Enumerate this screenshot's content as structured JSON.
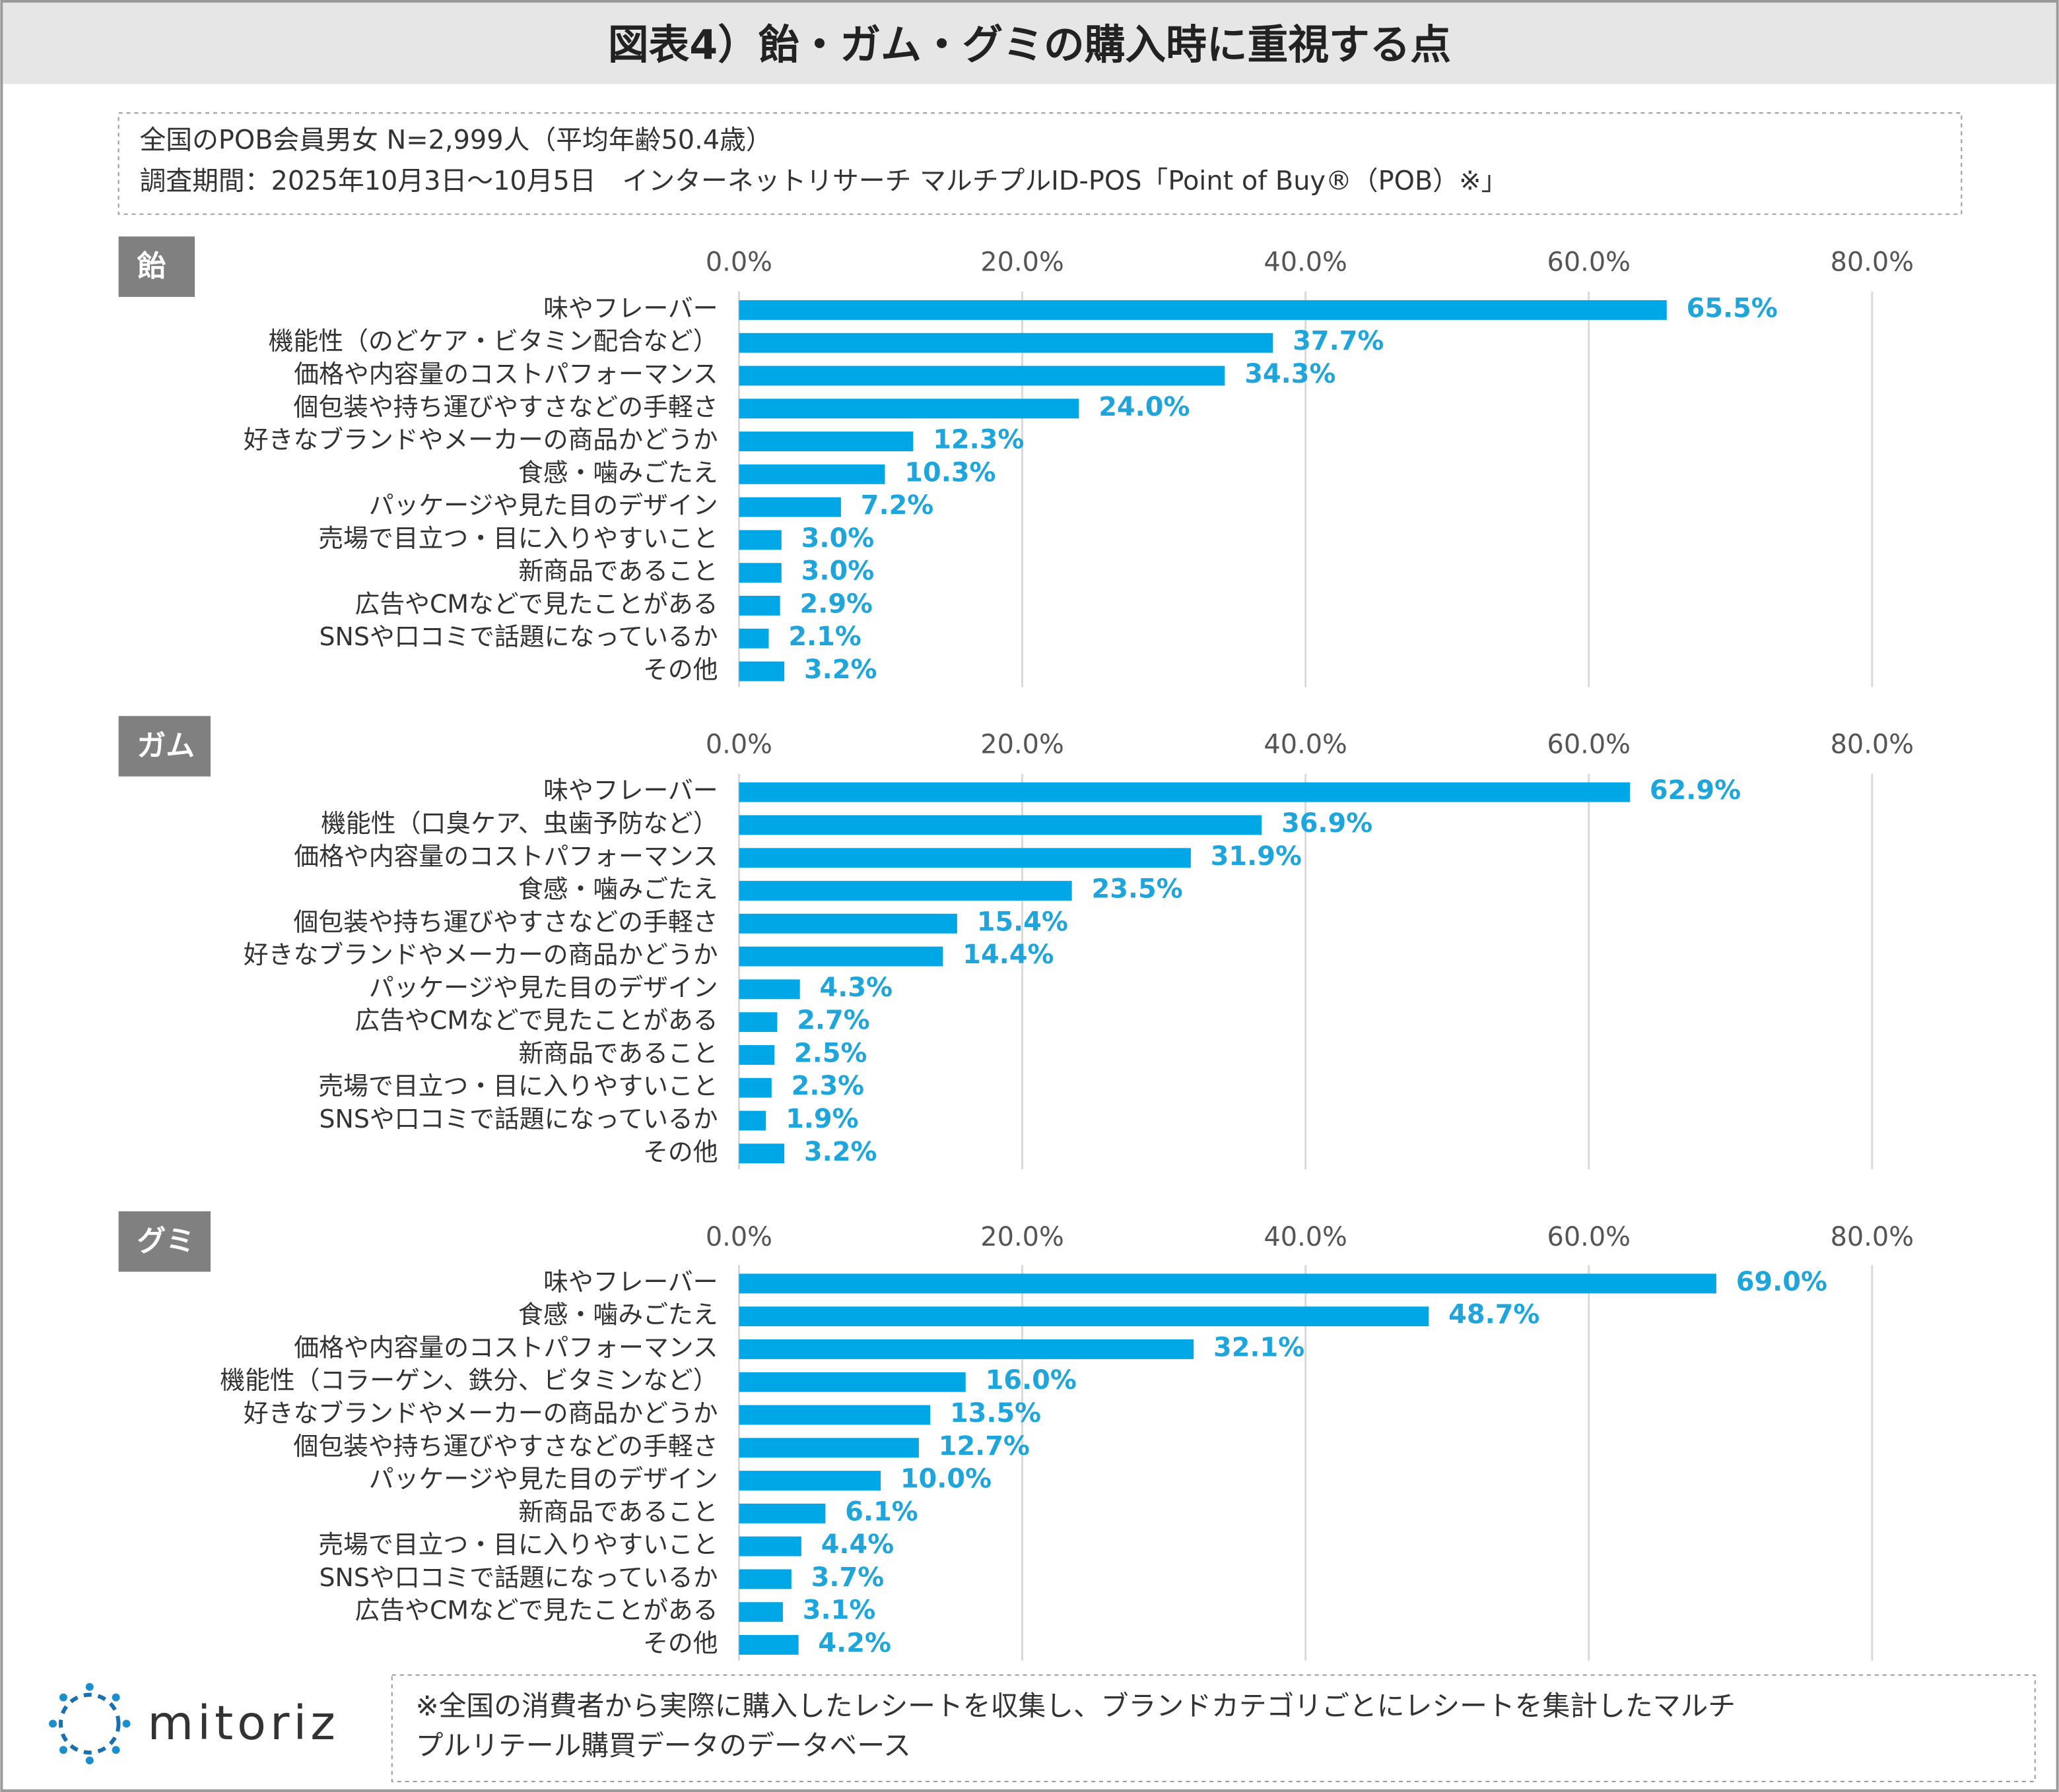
{
  "title": "図表4）飴・ガム・グミの購入時に重視する点",
  "notes": [
    "全国のPOB会員男女 N=2,999人（平均年齢50.4歳）",
    "調査期間：2025年10月3日～10月5日　インターネットリサーチ マルチプルID-POS「Point of Buy®（POB）※」"
  ],
  "footnote": [
    "※全国の消費者から実際に購入したレシートを収集し、ブランドカテゴリごとにレシートを集計したマルチ",
    "プルリテール購買データのデータベース"
  ],
  "logo": "mitoriz",
  "chart_data": [
    {
      "type": "bar",
      "orientation": "horizontal",
      "title": "飴",
      "color": "#00a7e6",
      "label_color": "#1ea5dc",
      "categories": [
        "味やフレーバー",
        "機能性（のどケア・ビタミン配合など）",
        "価格や内容量のコストパフォーマンス",
        "個包装や持ち運びやすさなどの手軽さ",
        "好きなブランドやメーカーの商品かどうか",
        "食感・噛みごたえ",
        "パッケージや見た目のデザイン",
        "売場で目立つ・目に入りやすいこと",
        "新商品であること",
        "広告やCMなどで見たことがある",
        "SNSや口コミで話題になっているか",
        "その他"
      ],
      "values": [
        65.5,
        37.7,
        34.3,
        24.0,
        12.3,
        10.3,
        7.2,
        3.0,
        3.0,
        2.9,
        2.1,
        3.2
      ],
      "value_labels": [
        "65.5%",
        "37.7%",
        "34.3%",
        "24.0%",
        "12.3%",
        "10.3%",
        "7.2%",
        "3.0%",
        "3.0%",
        "2.9%",
        "2.1%",
        "3.2%"
      ],
      "xlim": [
        0,
        80
      ],
      "grid": true,
      "xticks": [
        {
          "value": 0,
          "label": "0.0%"
        },
        {
          "value": 20,
          "label": "20.0%"
        },
        {
          "value": 40,
          "label": "40.0%"
        },
        {
          "value": 60,
          "label": "60.0%"
        },
        {
          "value": 80,
          "label": "80.0%"
        }
      ]
    },
    {
      "type": "bar",
      "orientation": "horizontal",
      "title": "ガム",
      "color": "#00a7e6",
      "label_color": "#1ea5dc",
      "categories": [
        "味やフレーバー",
        "機能性（口臭ケア、虫歯予防など）",
        "価格や内容量のコストパフォーマンス",
        "食感・噛みごたえ",
        "個包装や持ち運びやすさなどの手軽さ",
        "好きなブランドやメーカーの商品かどうか",
        "パッケージや見た目のデザイン",
        "広告やCMなどで見たことがある",
        "新商品であること",
        "売場で目立つ・目に入りやすいこと",
        "SNSや口コミで話題になっているか",
        "その他"
      ],
      "values": [
        62.9,
        36.9,
        31.9,
        23.5,
        15.4,
        14.4,
        4.3,
        2.7,
        2.5,
        2.3,
        1.9,
        3.2
      ],
      "value_labels": [
        "62.9%",
        "36.9%",
        "31.9%",
        "23.5%",
        "15.4%",
        "14.4%",
        "4.3%",
        "2.7%",
        "2.5%",
        "2.3%",
        "1.9%",
        "3.2%"
      ],
      "xlim": [
        0,
        80
      ],
      "grid": true,
      "xticks": [
        {
          "value": 0,
          "label": "0.0%"
        },
        {
          "value": 20,
          "label": "20.0%"
        },
        {
          "value": 40,
          "label": "40.0%"
        },
        {
          "value": 60,
          "label": "60.0%"
        },
        {
          "value": 80,
          "label": "80.0%"
        }
      ]
    },
    {
      "type": "bar",
      "orientation": "horizontal",
      "title": "グミ",
      "color": "#00a7e6",
      "label_color": "#1ea5dc",
      "categories": [
        "味やフレーバー",
        "食感・噛みごたえ",
        "価格や内容量のコストパフォーマンス",
        "機能性（コラーゲン、鉄分、ビタミンなど）",
        "好きなブランドやメーカーの商品かどうか",
        "個包装や持ち運びやすさなどの手軽さ",
        "パッケージや見た目のデザイン",
        "新商品であること",
        "売場で目立つ・目に入りやすいこと",
        "SNSや口コミで話題になっているか",
        "広告やCMなどで見たことがある",
        "その他"
      ],
      "values": [
        69.0,
        48.7,
        32.1,
        16.0,
        13.5,
        12.7,
        10.0,
        6.1,
        4.4,
        3.7,
        3.1,
        4.2
      ],
      "value_labels": [
        "69.0%",
        "48.7%",
        "32.1%",
        "16.0%",
        "13.5%",
        "12.7%",
        "10.0%",
        "6.1%",
        "4.4%",
        "3.7%",
        "3.1%",
        "4.2%"
      ],
      "xlim": [
        0,
        80
      ],
      "grid": true,
      "xticks": [
        {
          "value": 0,
          "label": "0.0%"
        },
        {
          "value": 20,
          "label": "20.0%"
        },
        {
          "value": 40,
          "label": "40.0%"
        },
        {
          "value": 60,
          "label": "60.0%"
        },
        {
          "value": 80,
          "label": "80.0%"
        }
      ]
    }
  ]
}
